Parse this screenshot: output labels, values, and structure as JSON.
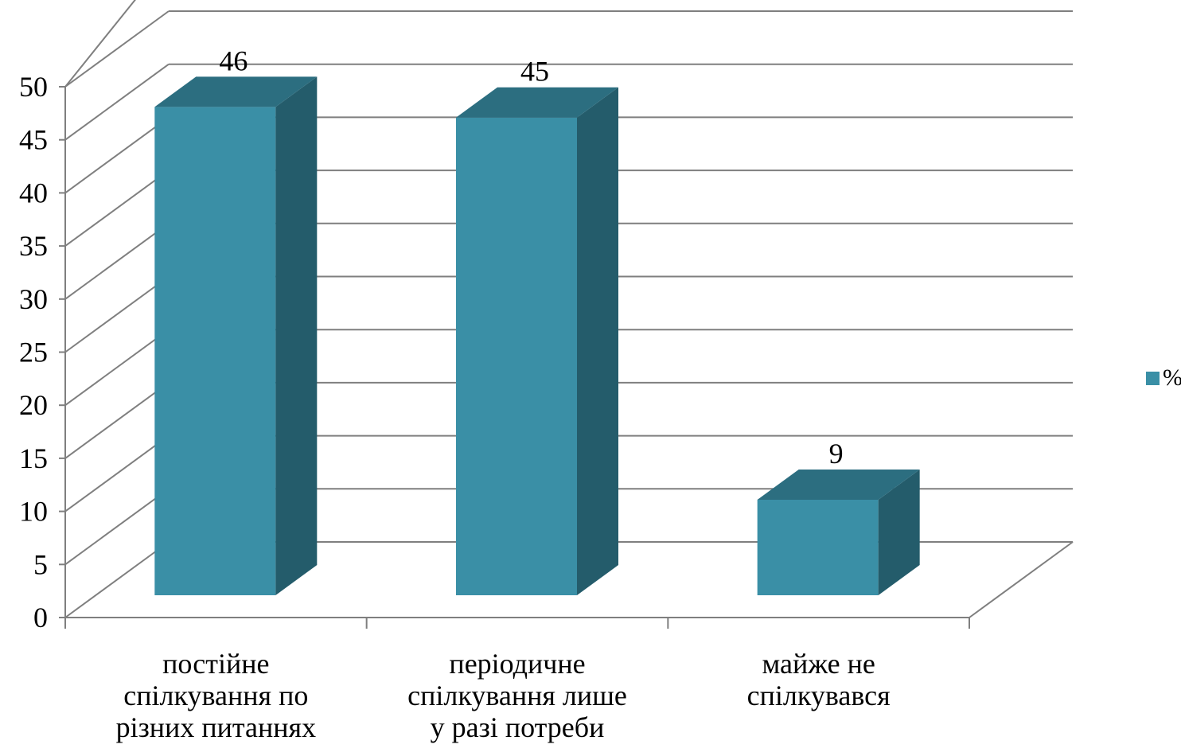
{
  "chart_data": {
    "type": "bar",
    "categories": [
      "постійне спілкування по різних питаннях",
      "періодичне спілкування лише у разі потреби",
      "майже не спілкувався"
    ],
    "category_lines": [
      [
        "постійне",
        "спілкування по",
        "різних питаннях"
      ],
      [
        "періодичне",
        "спілкування лише",
        "у разі потреби"
      ],
      [
        "майже не",
        "спілкувався"
      ]
    ],
    "series": [
      {
        "name": "%",
        "values": [
          46,
          45,
          9
        ],
        "color": "#3a8fa6"
      }
    ],
    "data_labels": [
      "46",
      "45",
      "9"
    ],
    "yticks": [
      "0",
      "5",
      "10",
      "15",
      "20",
      "25",
      "30",
      "35",
      "40",
      "45",
      "50"
    ],
    "ylim": [
      0,
      50
    ],
    "grid": true,
    "style": "3d-column",
    "legend_position": "right",
    "colors": {
      "front": "#3a8fa6",
      "side": "#245c6b",
      "top": "#2c6e80",
      "grid": "#7f7f7f"
    }
  }
}
